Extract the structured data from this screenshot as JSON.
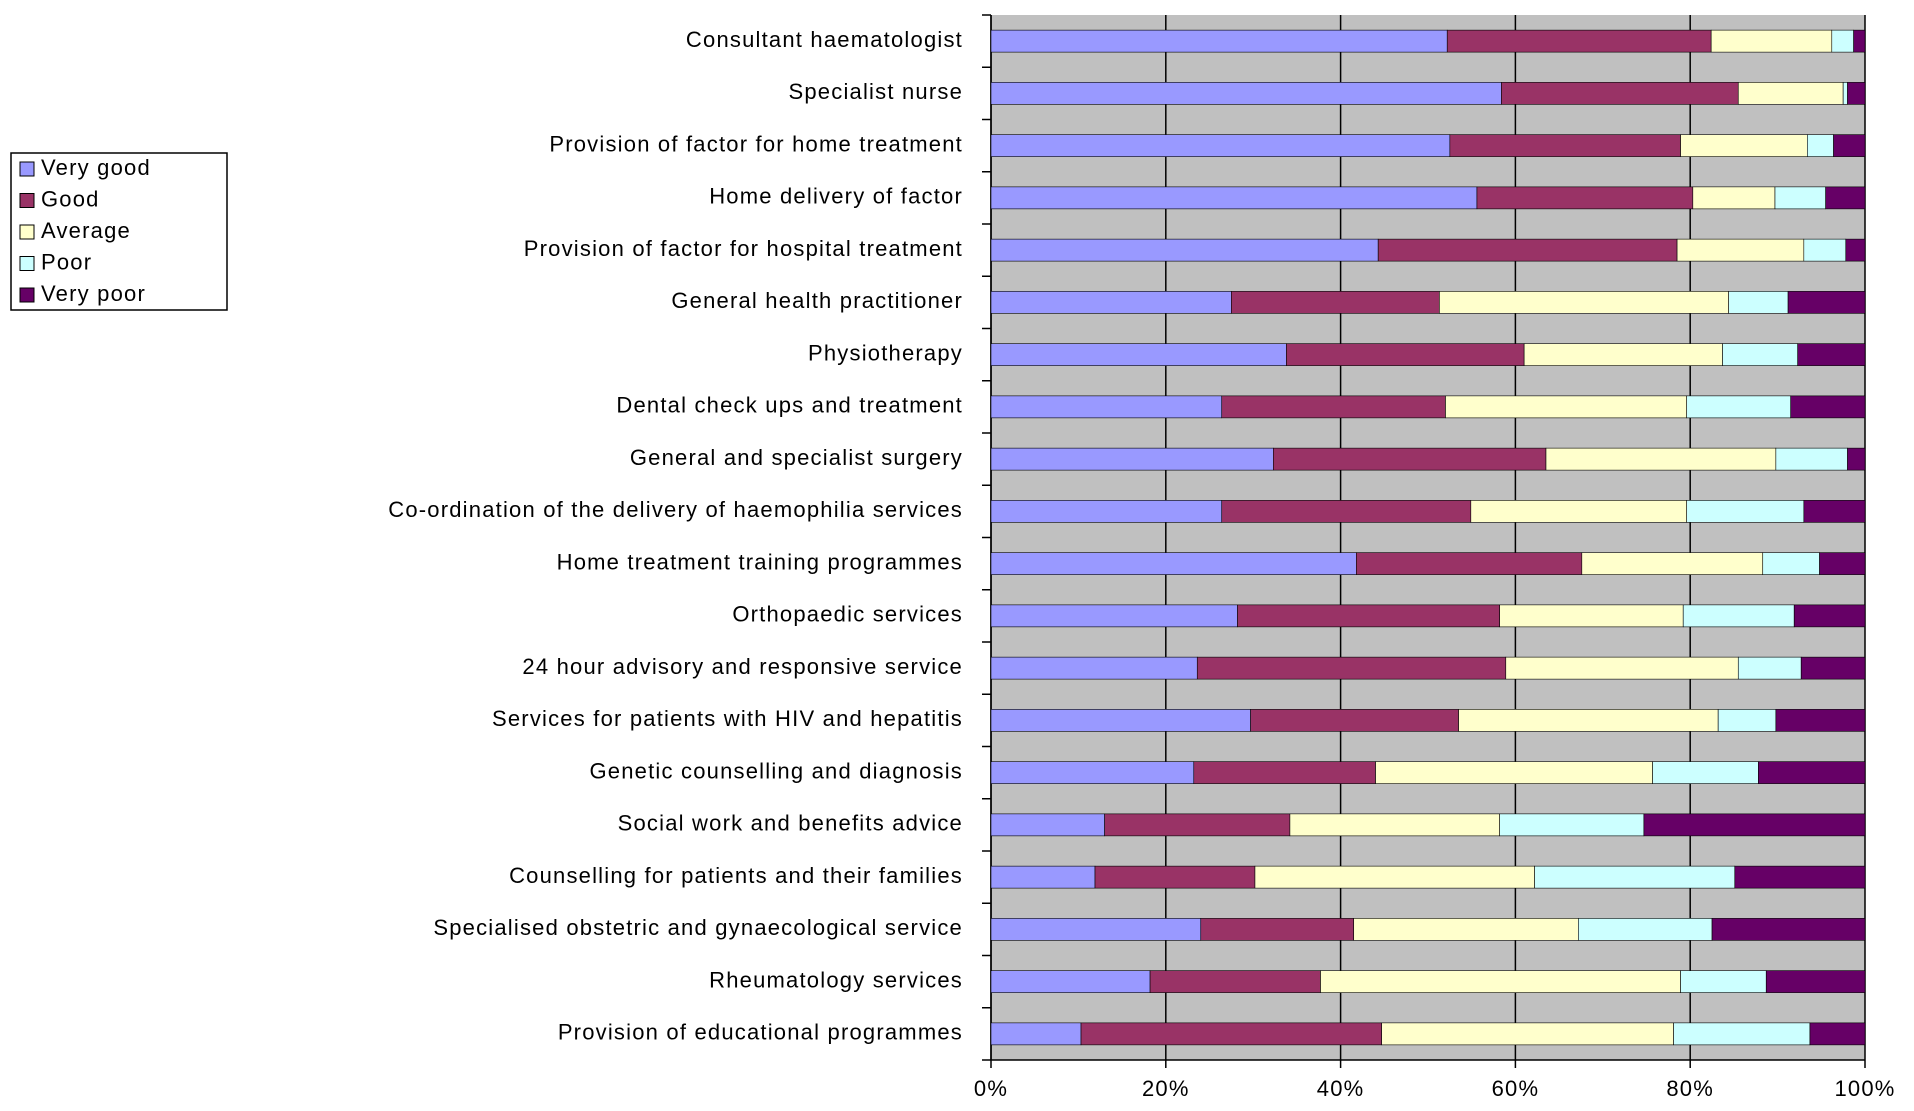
{
  "chart_data": {
    "type": "stacked_barh",
    "categories": [
      "Consultant haematologist",
      "Specialist nurse",
      "Provision of factor for home treatment",
      "Home delivery of factor",
      "Provision of factor for hospital treatment",
      "General health practitioner",
      "Physiotherapy",
      "Dental check ups and treatment",
      "General and specialist surgery",
      "Co-ordination of the delivery of haemophilia services",
      "Home treatment training programmes",
      "Orthopaedic services",
      "24 hour advisory and responsive service",
      "Services for patients with HIV and hepatitis",
      "Genetic counselling and diagnosis",
      "Social work and benefits advice",
      "Counselling for patients and their families",
      "Specialised obstetric and gynaecological service",
      "Rheumatology services",
      "Provision of educational programmes"
    ],
    "series": [
      {
        "name": "Very good",
        "color": "#9999ff",
        "values": [
          52.2,
          58.4,
          52.5,
          55.6,
          44.3,
          27.5,
          33.8,
          26.4,
          32.3,
          26.4,
          41.8,
          28.2,
          23.6,
          29.7,
          23.2,
          13.0,
          11.9,
          24.0,
          18.2,
          10.3
        ]
      },
      {
        "name": "Good",
        "color": "#993366",
        "values": [
          30.2,
          27.1,
          26.4,
          24.7,
          34.2,
          23.8,
          27.2,
          25.6,
          31.2,
          28.5,
          25.8,
          30.0,
          35.3,
          23.8,
          20.8,
          21.2,
          18.3,
          17.5,
          19.5,
          34.4
        ]
      },
      {
        "name": "Average",
        "color": "#ffffcc",
        "values": [
          13.8,
          12.0,
          14.5,
          9.4,
          14.5,
          33.1,
          22.7,
          27.6,
          26.3,
          24.7,
          20.7,
          21.0,
          26.6,
          29.7,
          31.7,
          24.0,
          32.0,
          25.7,
          41.2,
          33.4
        ]
      },
      {
        "name": "Poor",
        "color": "#ccffff",
        "values": [
          2.5,
          0.5,
          3.0,
          5.8,
          4.8,
          6.8,
          8.6,
          11.9,
          8.2,
          13.4,
          6.5,
          12.7,
          7.2,
          6.6,
          12.1,
          16.5,
          22.9,
          15.3,
          9.8,
          15.6
        ]
      },
      {
        "name": "Very poor",
        "color": "#660066",
        "values": [
          1.3,
          2.0,
          3.6,
          4.5,
          2.2,
          8.8,
          7.7,
          8.5,
          2.0,
          7.0,
          5.2,
          8.1,
          7.3,
          10.2,
          12.2,
          25.3,
          14.9,
          17.5,
          11.3,
          6.3
        ]
      }
    ],
    "xlim": [
      0,
      100
    ],
    "xticks": [
      {
        "value": 0,
        "label": "0%"
      },
      {
        "value": 20,
        "label": "20%"
      },
      {
        "value": 40,
        "label": "40%"
      },
      {
        "value": 60,
        "label": "60%"
      },
      {
        "value": 80,
        "label": "80%"
      },
      {
        "value": 100,
        "label": "100%"
      }
    ],
    "grid": true,
    "legend": "left"
  }
}
